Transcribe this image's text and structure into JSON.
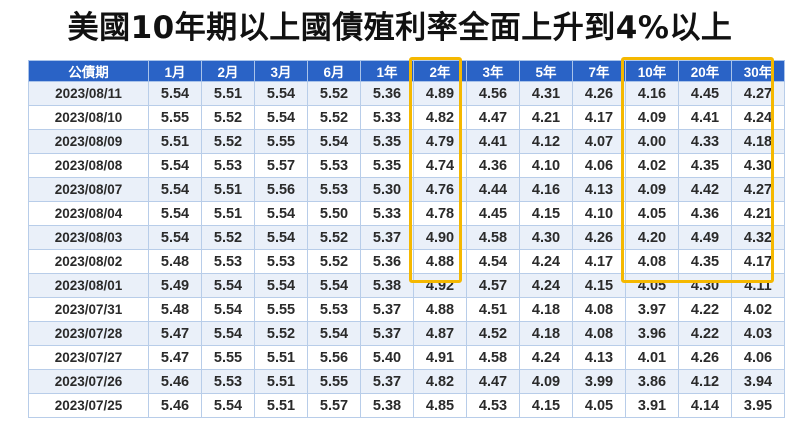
{
  "title": "美國10年期以上國債殖利率全面上升到4%以上",
  "table": {
    "headers": [
      "公債期",
      "1月",
      "2月",
      "3月",
      "6月",
      "1年",
      "2年",
      "3年",
      "5年",
      "7年",
      "10年",
      "20年",
      "30年"
    ],
    "rows": [
      [
        "2023/08/11",
        "5.54",
        "5.51",
        "5.54",
        "5.52",
        "5.36",
        "4.89",
        "4.56",
        "4.31",
        "4.26",
        "4.16",
        "4.45",
        "4.27"
      ],
      [
        "2023/08/10",
        "5.55",
        "5.52",
        "5.54",
        "5.52",
        "5.33",
        "4.82",
        "4.47",
        "4.21",
        "4.17",
        "4.09",
        "4.41",
        "4.24"
      ],
      [
        "2023/08/09",
        "5.51",
        "5.52",
        "5.55",
        "5.54",
        "5.35",
        "4.79",
        "4.41",
        "4.12",
        "4.07",
        "4.00",
        "4.33",
        "4.18"
      ],
      [
        "2023/08/08",
        "5.54",
        "5.53",
        "5.57",
        "5.53",
        "5.35",
        "4.74",
        "4.36",
        "4.10",
        "4.06",
        "4.02",
        "4.35",
        "4.30"
      ],
      [
        "2023/08/07",
        "5.54",
        "5.51",
        "5.56",
        "5.53",
        "5.30",
        "4.76",
        "4.44",
        "4.16",
        "4.13",
        "4.09",
        "4.42",
        "4.27"
      ],
      [
        "2023/08/04",
        "5.54",
        "5.51",
        "5.54",
        "5.50",
        "5.33",
        "4.78",
        "4.45",
        "4.15",
        "4.10",
        "4.05",
        "4.36",
        "4.21"
      ],
      [
        "2023/08/03",
        "5.54",
        "5.52",
        "5.54",
        "5.52",
        "5.37",
        "4.90",
        "4.58",
        "4.30",
        "4.26",
        "4.20",
        "4.49",
        "4.32"
      ],
      [
        "2023/08/02",
        "5.48",
        "5.53",
        "5.53",
        "5.52",
        "5.36",
        "4.88",
        "4.54",
        "4.24",
        "4.17",
        "4.08",
        "4.35",
        "4.17"
      ],
      [
        "2023/08/01",
        "5.49",
        "5.54",
        "5.54",
        "5.54",
        "5.38",
        "4.92",
        "4.57",
        "4.24",
        "4.15",
        "4.05",
        "4.30",
        "4.11"
      ],
      [
        "2023/07/31",
        "5.48",
        "5.54",
        "5.55",
        "5.53",
        "5.37",
        "4.88",
        "4.51",
        "4.18",
        "4.08",
        "3.97",
        "4.22",
        "4.02"
      ],
      [
        "2023/07/28",
        "5.47",
        "5.54",
        "5.52",
        "5.54",
        "5.37",
        "4.87",
        "4.52",
        "4.18",
        "4.08",
        "3.96",
        "4.22",
        "4.03"
      ],
      [
        "2023/07/27",
        "5.47",
        "5.55",
        "5.51",
        "5.56",
        "5.40",
        "4.91",
        "4.58",
        "4.24",
        "4.13",
        "4.01",
        "4.26",
        "4.06"
      ],
      [
        "2023/07/26",
        "5.46",
        "5.53",
        "5.51",
        "5.55",
        "5.37",
        "4.82",
        "4.47",
        "4.09",
        "3.99",
        "3.86",
        "4.12",
        "3.94"
      ],
      [
        "2023/07/25",
        "5.46",
        "5.54",
        "5.51",
        "5.57",
        "5.38",
        "4.85",
        "4.53",
        "4.15",
        "4.05",
        "3.91",
        "4.14",
        "3.95"
      ]
    ]
  },
  "highlight_color": "#f5b800",
  "header_color": "#2a63c6"
}
